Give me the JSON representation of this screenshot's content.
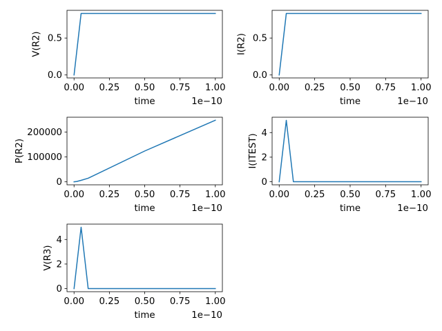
{
  "colors": {
    "line": "#1f77b4",
    "axes": "#000000",
    "background": "#ffffff"
  },
  "chart_data": [
    {
      "type": "line",
      "title": "",
      "xlabel": "time",
      "ylabel": "V(R2)",
      "x_offset_label": "1e−10",
      "series": [
        {
          "name": "V(R2)",
          "x": [
            0,
            0.05,
            0.1,
            1.0
          ],
          "y": [
            0,
            0.833,
            0.833,
            0.833
          ]
        }
      ],
      "xlim": [
        -0.05,
        1.05
      ],
      "ylim": [
        -0.04,
        0.875
      ],
      "xticks": [
        0,
        0.25,
        0.5,
        0.75,
        1.0
      ],
      "xtick_labels": [
        "0.00",
        "0.25",
        "0.50",
        "0.75",
        "1.00"
      ],
      "yticks": [
        0,
        0.5
      ],
      "ytick_labels": [
        "0.0",
        "0.5"
      ]
    },
    {
      "type": "line",
      "title": "",
      "xlabel": "time",
      "ylabel": "I(R2)",
      "x_offset_label": "1e−10",
      "series": [
        {
          "name": "I(R2)",
          "x": [
            0,
            0.05,
            0.1,
            1.0
          ],
          "y": [
            0,
            0.833,
            0.833,
            0.833
          ]
        }
      ],
      "xlim": [
        -0.05,
        1.05
      ],
      "ylim": [
        -0.04,
        0.875
      ],
      "xticks": [
        0,
        0.25,
        0.5,
        0.75,
        1.0
      ],
      "xtick_labels": [
        "0.00",
        "0.25",
        "0.50",
        "0.75",
        "1.00"
      ],
      "yticks": [
        0,
        0.5
      ],
      "ytick_labels": [
        "0.0",
        "0.5"
      ]
    },
    {
      "type": "line",
      "title": "",
      "xlabel": "time",
      "ylabel": "P(R2)",
      "x_offset_label": "1e−10",
      "series": [
        {
          "name": "P(R2)",
          "x": [
            0,
            0.02,
            0.05,
            0.1,
            0.5,
            1.0
          ],
          "y": [
            0,
            1500,
            6000,
            14500,
            124000,
            248000
          ]
        }
      ],
      "xlim": [
        -0.05,
        1.05
      ],
      "ylim": [
        -12000,
        260000
      ],
      "xticks": [
        0,
        0.25,
        0.5,
        0.75,
        1.0
      ],
      "xtick_labels": [
        "0.00",
        "0.25",
        "0.50",
        "0.75",
        "1.00"
      ],
      "yticks": [
        0,
        100000,
        200000
      ],
      "ytick_labels": [
        "0",
        "100000",
        "200000"
      ]
    },
    {
      "type": "line",
      "title": "",
      "xlabel": "time",
      "ylabel": "I(ITEST)",
      "x_offset_label": "1e−10",
      "series": [
        {
          "name": "I(ITEST)",
          "x": [
            0,
            0.05,
            0.1,
            1.0
          ],
          "y": [
            0,
            5,
            0,
            0
          ]
        }
      ],
      "xlim": [
        -0.05,
        1.05
      ],
      "ylim": [
        -0.25,
        5.25
      ],
      "xticks": [
        0,
        0.25,
        0.5,
        0.75,
        1.0
      ],
      "xtick_labels": [
        "0.00",
        "0.25",
        "0.50",
        "0.75",
        "1.00"
      ],
      "yticks": [
        0,
        2,
        4
      ],
      "ytick_labels": [
        "0",
        "2",
        "4"
      ]
    },
    {
      "type": "line",
      "title": "",
      "xlabel": "time",
      "ylabel": "V(R3)",
      "x_offset_label": "1e−10",
      "series": [
        {
          "name": "V(R3)",
          "x": [
            0,
            0.05,
            0.1,
            1.0
          ],
          "y": [
            0,
            5,
            0,
            0
          ]
        }
      ],
      "xlim": [
        -0.05,
        1.05
      ],
      "ylim": [
        -0.25,
        5.25
      ],
      "xticks": [
        0,
        0.25,
        0.5,
        0.75,
        1.0
      ],
      "xtick_labels": [
        "0.00",
        "0.25",
        "0.50",
        "0.75",
        "1.00"
      ],
      "yticks": [
        0,
        2,
        4
      ],
      "ytick_labels": [
        "0",
        "2",
        "4"
      ]
    }
  ]
}
